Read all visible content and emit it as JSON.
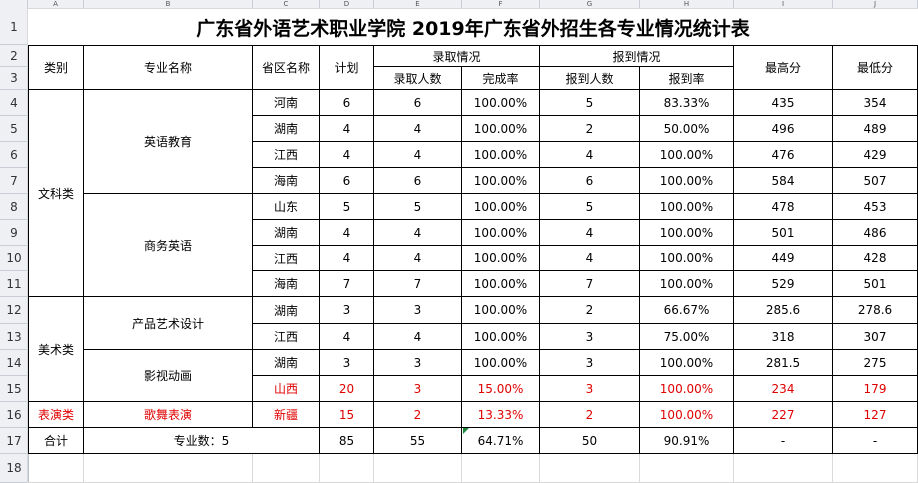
{
  "sheet": {
    "columns": [
      "A",
      "B",
      "C",
      "D",
      "E",
      "F",
      "G",
      "H",
      "I",
      "J"
    ],
    "rows": [
      "1",
      "2",
      "3",
      "4",
      "5",
      "6",
      "7",
      "8",
      "9",
      "10",
      "11",
      "12",
      "13",
      "14",
      "15",
      "16",
      "17",
      "18"
    ],
    "title": "广东省外语艺术职业学院 2019年广东省外招生各专业情况统计表",
    "headers": {
      "category": "类别",
      "major": "专业名称",
      "province": "省区名称",
      "plan": "计划",
      "admission_group": "录取情况",
      "admitted": "录取人数",
      "completion": "完成率",
      "report_group": "报到情况",
      "reported": "报到人数",
      "report_rate": "报到率",
      "max_score": "最高分",
      "min_score": "最低分"
    },
    "categories": [
      "文科类",
      "美术类",
      "表演类"
    ],
    "majors": [
      "英语教育",
      "商务英语",
      "产品艺术设计",
      "影视动画",
      "歌舞表演"
    ],
    "data_rows": [
      {
        "province": "河南",
        "plan": "6",
        "admitted": "6",
        "completion": "100.00%",
        "reported": "5",
        "report_rate": "83.33%",
        "max": "435",
        "min": "354",
        "red": false
      },
      {
        "province": "湖南",
        "plan": "4",
        "admitted": "4",
        "completion": "100.00%",
        "reported": "2",
        "report_rate": "50.00%",
        "max": "496",
        "min": "489",
        "red": false
      },
      {
        "province": "江西",
        "plan": "4",
        "admitted": "4",
        "completion": "100.00%",
        "reported": "4",
        "report_rate": "100.00%",
        "max": "476",
        "min": "429",
        "red": false
      },
      {
        "province": "海南",
        "plan": "6",
        "admitted": "6",
        "completion": "100.00%",
        "reported": "6",
        "report_rate": "100.00%",
        "max": "584",
        "min": "507",
        "red": false
      },
      {
        "province": "山东",
        "plan": "5",
        "admitted": "5",
        "completion": "100.00%",
        "reported": "5",
        "report_rate": "100.00%",
        "max": "478",
        "min": "453",
        "red": false
      },
      {
        "province": "湖南",
        "plan": "4",
        "admitted": "4",
        "completion": "100.00%",
        "reported": "4",
        "report_rate": "100.00%",
        "max": "501",
        "min": "486",
        "red": false
      },
      {
        "province": "江西",
        "plan": "4",
        "admitted": "4",
        "completion": "100.00%",
        "reported": "4",
        "report_rate": "100.00%",
        "max": "449",
        "min": "428",
        "red": false
      },
      {
        "province": "海南",
        "plan": "7",
        "admitted": "7",
        "completion": "100.00%",
        "reported": "7",
        "report_rate": "100.00%",
        "max": "529",
        "min": "501",
        "red": false
      },
      {
        "province": "湖南",
        "plan": "3",
        "admitted": "3",
        "completion": "100.00%",
        "reported": "2",
        "report_rate": "66.67%",
        "max": "285.6",
        "min": "278.6",
        "red": false
      },
      {
        "province": "江西",
        "plan": "4",
        "admitted": "4",
        "completion": "100.00%",
        "reported": "3",
        "report_rate": "75.00%",
        "max": "318",
        "min": "307",
        "red": false
      },
      {
        "province": "湖南",
        "plan": "3",
        "admitted": "3",
        "completion": "100.00%",
        "reported": "3",
        "report_rate": "100.00%",
        "max": "281.5",
        "min": "275",
        "red": false
      },
      {
        "province": "山西",
        "plan": "20",
        "admitted": "3",
        "completion": "15.00%",
        "reported": "3",
        "report_rate": "100.00%",
        "max": "234",
        "min": "179",
        "red": true
      },
      {
        "province": "新疆",
        "plan": "15",
        "admitted": "2",
        "completion": "13.33%",
        "reported": "2",
        "report_rate": "100.00%",
        "max": "227",
        "min": "127",
        "red": true
      }
    ],
    "total": {
      "label": "合计",
      "major_count": "专业数：5",
      "plan": "85",
      "admitted": "55",
      "completion": "64.71%",
      "reported": "50",
      "report_rate": "90.91%",
      "max": "-",
      "min": "-"
    },
    "colors": {
      "highlight_text": "#e00000",
      "header_bg": "#eef0f4",
      "comment_marker": "#1e8a3c"
    }
  }
}
